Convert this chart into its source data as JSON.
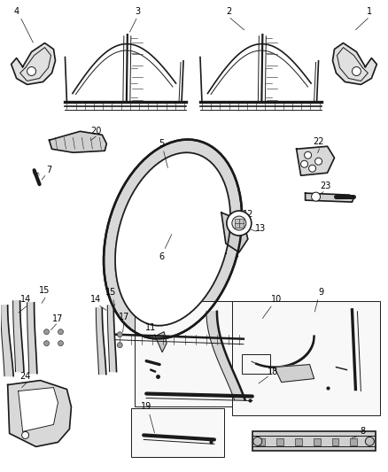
{
  "background_color": "#ffffff",
  "line_color": "#1a1a1a",
  "label_color": "#000000",
  "label_fontsize": 7.0,
  "fig_width": 4.38,
  "fig_height": 5.33,
  "dpi": 100
}
